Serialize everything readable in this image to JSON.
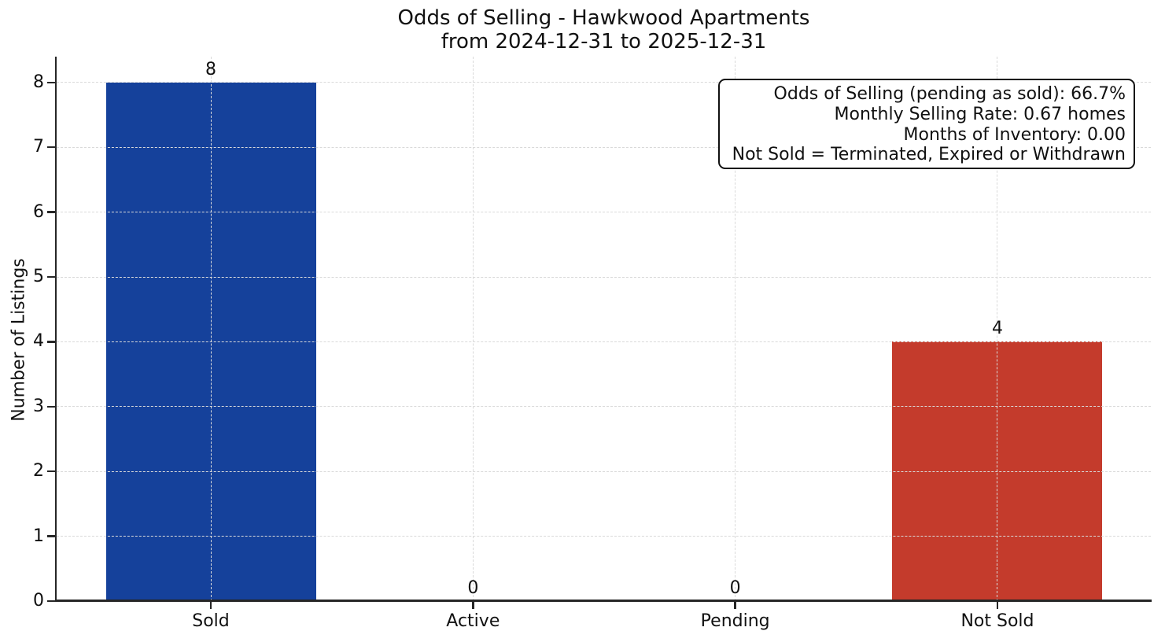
{
  "chart_data": {
    "type": "bar",
    "title": "Odds of Selling - Hawkwood Apartments",
    "subtitle": "from 2024-12-31 to 2025-12-31",
    "ylabel": "Number of Listings",
    "xlabel": "",
    "categories": [
      "Sold",
      "Active",
      "Pending",
      "Not Sold"
    ],
    "values": [
      8,
      0,
      0,
      4
    ],
    "value_labels": [
      "8",
      "0",
      "0",
      "4"
    ],
    "bar_colors": [
      "#15419B",
      null,
      null,
      "#C43B2C"
    ],
    "yticks": [
      0,
      1,
      2,
      3,
      4,
      5,
      6,
      7,
      8
    ],
    "ylim": [
      0,
      8.4
    ],
    "grid": "dashed both axes",
    "legend": "none",
    "annotation": {
      "lines": [
        "Odds of Selling (pending as sold): 66.7%",
        "Monthly Selling Rate: 0.67 homes",
        "Months of Inventory: 0.00",
        "Not Sold = Terminated, Expired or Withdrawn"
      ]
    },
    "colors": {
      "sold_bar": "#15419B",
      "not_sold_bar": "#C43B2C",
      "axis": "#262626",
      "gridline": "#D9D9D9",
      "text": "#111111",
      "background": "#FFFFFF"
    }
  }
}
